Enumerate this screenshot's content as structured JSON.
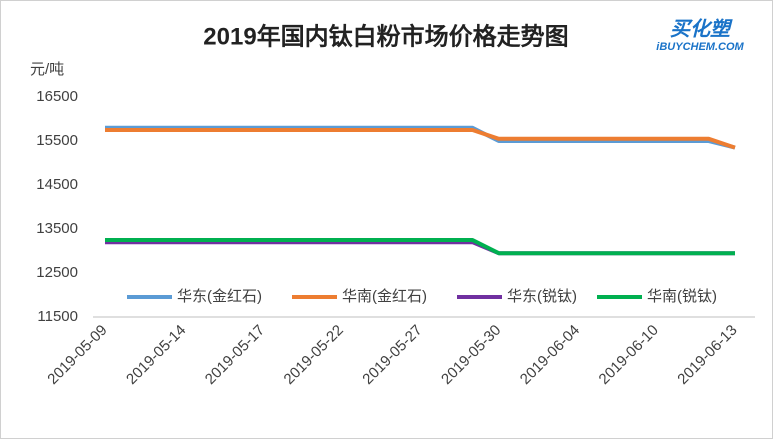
{
  "chart_data": {
    "type": "line",
    "title": "2019年国内钛白粉市场价格走势图",
    "y_label": "元/吨",
    "categories": [
      "2019-05-09",
      null,
      null,
      "2019-05-14",
      null,
      null,
      "2019-05-17",
      null,
      null,
      "2019-05-22",
      null,
      null,
      "2019-05-27",
      null,
      null,
      "2019-05-30",
      null,
      null,
      "2019-06-04",
      null,
      null,
      "2019-06-10",
      null,
      null,
      "2019-06-13"
    ],
    "series": [
      {
        "name": "华东(金红石)",
        "color": "#5b9bd5",
        "values": [
          15800,
          15800,
          15800,
          15800,
          15800,
          15800,
          15800,
          15800,
          15800,
          15800,
          15800,
          15800,
          15800,
          15800,
          15800,
          15500,
          15500,
          15500,
          15500,
          15500,
          15500,
          15500,
          15500,
          15500,
          15350
        ]
      },
      {
        "name": "华南(金红石)",
        "color": "#ed7d31",
        "values": [
          15750,
          15750,
          15750,
          15750,
          15750,
          15750,
          15750,
          15750,
          15750,
          15750,
          15750,
          15750,
          15750,
          15750,
          15750,
          15550,
          15550,
          15550,
          15550,
          15550,
          15550,
          15550,
          15550,
          15550,
          15350
        ]
      },
      {
        "name": "华东(锐钛)",
        "color": "#7030a0",
        "values": [
          13200,
          13200,
          13200,
          13200,
          13200,
          13200,
          13200,
          13200,
          13200,
          13200,
          13200,
          13200,
          13200,
          13200,
          13200,
          12950,
          12950,
          12950,
          12950,
          12950,
          12950,
          12950,
          12950,
          12950,
          12950
        ]
      },
      {
        "name": "华南(锐钛)",
        "color": "#00b050",
        "values": [
          13250,
          13250,
          13250,
          13250,
          13250,
          13250,
          13250,
          13250,
          13250,
          13250,
          13250,
          13250,
          13250,
          13250,
          13250,
          12950,
          12950,
          12950,
          12950,
          12950,
          12950,
          12950,
          12950,
          12950,
          12950
        ]
      }
    ],
    "ylim": [
      11500,
      16500
    ],
    "yticks": [
      11500,
      12500,
      13500,
      14500,
      15500,
      16500
    ],
    "grid": false,
    "legend": "bottom"
  },
  "logo": {
    "name": "买化塑",
    "site": "iBUYCHEM.COM"
  }
}
